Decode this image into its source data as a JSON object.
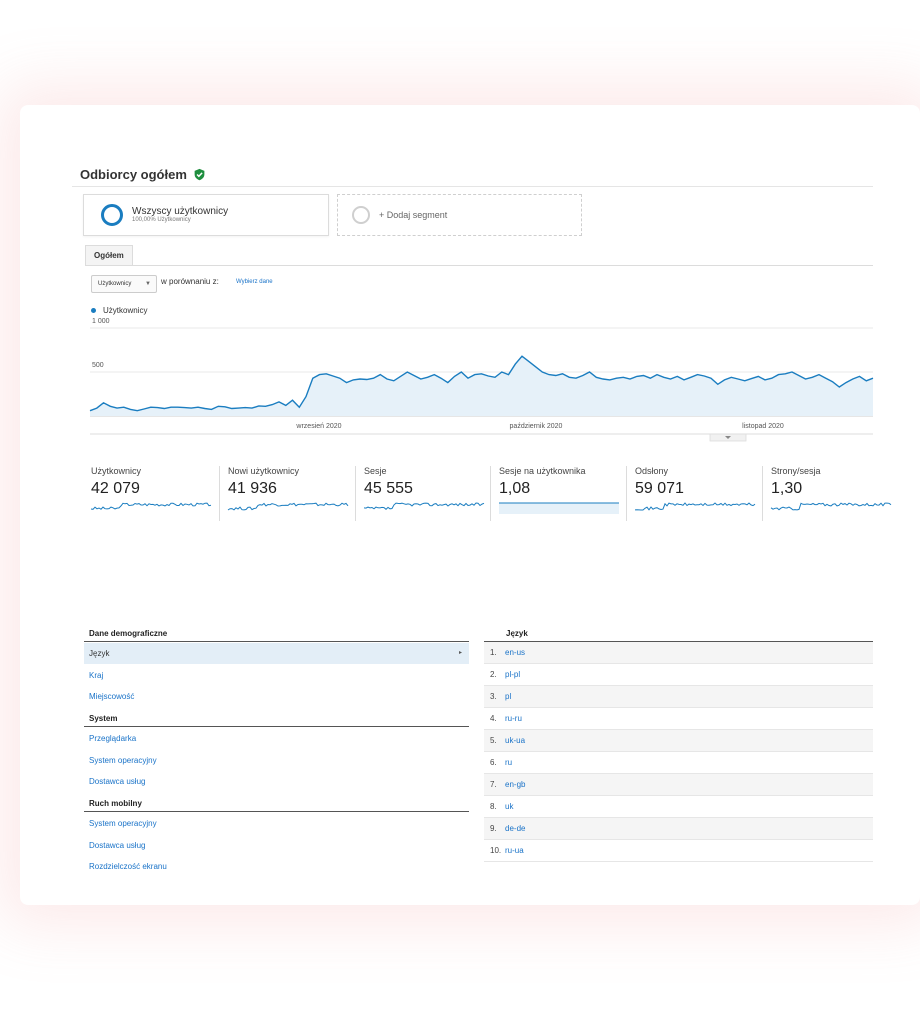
{
  "report": {
    "title": "Odbiorcy ogółem",
    "verified_icon": "shield-check-icon"
  },
  "segments": [
    {
      "name": "Wszyscy użytkownicy",
      "sub": "100,00% Użytkownicy"
    },
    {
      "name": "+ Dodaj segment"
    }
  ],
  "tabs": [
    {
      "label": "Ogółem"
    }
  ],
  "controls": {
    "metric_select": "Użytkownicy",
    "compare_label": "w porównaniu z:",
    "compare_link": "Wybierz dane"
  },
  "chart_data": {
    "type": "area",
    "title": "",
    "series": [
      {
        "name": "Użytkownicy",
        "values": [
          60,
          90,
          150,
          110,
          90,
          100,
          75,
          60,
          80,
          100,
          95,
          85,
          100,
          100,
          95,
          90,
          100,
          85,
          75,
          110,
          105,
          85,
          90,
          95,
          90,
          115,
          110,
          130,
          160,
          120,
          180,
          100,
          220,
          430,
          470,
          480,
          455,
          430,
          380,
          410,
          420,
          415,
          430,
          470,
          420,
          400,
          450,
          500,
          460,
          420,
          440,
          470,
          430,
          380,
          450,
          500,
          430,
          470,
          480,
          455,
          440,
          500,
          470,
          590,
          680,
          620,
          560,
          500,
          470,
          460,
          480,
          440,
          430,
          460,
          500,
          440,
          420,
          410,
          430,
          440,
          420,
          450,
          460,
          430,
          470,
          440,
          420,
          450,
          410,
          440,
          470,
          455,
          430,
          360,
          410,
          440,
          420,
          400,
          425,
          450,
          410,
          430,
          470,
          480,
          500,
          460,
          420,
          440,
          470,
          430,
          390,
          330,
          380,
          420,
          450,
          400,
          430
        ],
        "color": "#1a7dc0"
      }
    ],
    "y_ticks": [
      "1 000",
      "500"
    ],
    "x_ticks": [
      "wrzesień 2020",
      "październik 2020",
      "listopad 2020"
    ],
    "ylim": [
      0,
      1000
    ]
  },
  "metrics": [
    {
      "label": "Użytkownicy",
      "value": "42 079"
    },
    {
      "label": "Nowi użytkownicy",
      "value": "41 936"
    },
    {
      "label": "Sesje",
      "value": "45 555"
    },
    {
      "label": "Sesje na użytkownika",
      "value": "1,08"
    },
    {
      "label": "Odsłony",
      "value": "59 071"
    },
    {
      "label": "Strony/sesja",
      "value": "1,30"
    }
  ],
  "dimensions": {
    "sections": [
      {
        "title": "Dane demograficzne",
        "items": [
          "Język",
          "Kraj",
          "Miejscowość"
        ]
      },
      {
        "title": "System",
        "items": [
          "Przeglądarka",
          "System operacyjny",
          "Dostawca usług"
        ]
      },
      {
        "title": "Ruch mobilny",
        "items": [
          "System operacyjny",
          "Dostawca usług",
          "Rozdzielczość ekranu"
        ]
      }
    ]
  },
  "language_table": {
    "header": "Język",
    "rows": [
      {
        "num": "1.",
        "lang": "en-us"
      },
      {
        "num": "2.",
        "lang": "pl-pl"
      },
      {
        "num": "3.",
        "lang": "pl"
      },
      {
        "num": "4.",
        "lang": "ru-ru"
      },
      {
        "num": "5.",
        "lang": "uk-ua"
      },
      {
        "num": "6.",
        "lang": "ru"
      },
      {
        "num": "7.",
        "lang": "en-gb"
      },
      {
        "num": "8.",
        "lang": "uk"
      },
      {
        "num": "9.",
        "lang": "de-de"
      },
      {
        "num": "10.",
        "lang": "ru-ua"
      }
    ]
  }
}
